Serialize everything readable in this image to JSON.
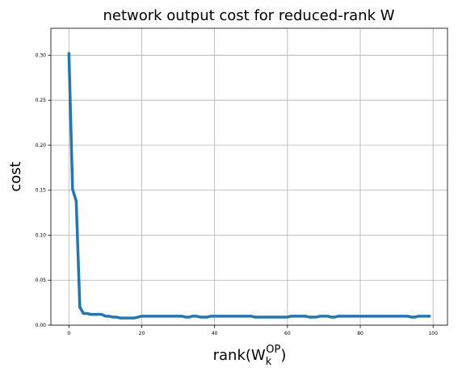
{
  "chart_data": {
    "type": "line",
    "title": "network output cost for reduced-rank W",
    "xlabel": {
      "base": "rank(W",
      "sub": "k",
      "sup": "OP",
      "close": ")"
    },
    "ylabel": "cost",
    "xlim": [
      -4.95,
      103.95
    ],
    "ylim": [
      0,
      0.33
    ],
    "xticks": [
      0,
      20,
      40,
      60,
      80,
      100
    ],
    "xtick_labels": [
      "0",
      "20",
      "40",
      "60",
      "80",
      "100"
    ],
    "yticks": [
      0.0,
      0.05,
      0.1,
      0.15,
      0.2,
      0.25,
      0.3
    ],
    "ytick_labels": [
      "0.00",
      "0.05",
      "0.10",
      "0.15",
      "0.20",
      "0.25",
      "0.30"
    ],
    "grid": true,
    "line_color": "#1f77b4",
    "series": [
      {
        "x": [
          0,
          1,
          2,
          3,
          4,
          5,
          6,
          7,
          8,
          9,
          10,
          11,
          12,
          13,
          14,
          15,
          16,
          17,
          18,
          19,
          20,
          21,
          22,
          23,
          24,
          25,
          26,
          27,
          28,
          29,
          30,
          31,
          32,
          33,
          34,
          35,
          36,
          37,
          38,
          39,
          40,
          41,
          42,
          43,
          44,
          45,
          46,
          47,
          48,
          49,
          50,
          51,
          52,
          53,
          54,
          55,
          56,
          57,
          58,
          59,
          60,
          61,
          62,
          63,
          64,
          65,
          66,
          67,
          68,
          69,
          70,
          71,
          72,
          73,
          74,
          75,
          76,
          77,
          78,
          79,
          80,
          81,
          82,
          83,
          84,
          85,
          86,
          87,
          88,
          89,
          90,
          91,
          92,
          93,
          94,
          95,
          96,
          97,
          98,
          99
        ],
        "y": [
          0.302,
          0.151,
          0.138,
          0.02,
          0.013,
          0.013,
          0.012,
          0.012,
          0.012,
          0.012,
          0.01,
          0.01,
          0.009,
          0.009,
          0.008,
          0.008,
          0.008,
          0.008,
          0.008,
          0.009,
          0.01,
          0.01,
          0.01,
          0.01,
          0.01,
          0.01,
          0.01,
          0.01,
          0.01,
          0.01,
          0.01,
          0.01,
          0.009,
          0.009,
          0.01,
          0.01,
          0.009,
          0.009,
          0.009,
          0.01,
          0.01,
          0.01,
          0.01,
          0.01,
          0.01,
          0.01,
          0.01,
          0.01,
          0.01,
          0.01,
          0.01,
          0.009,
          0.009,
          0.009,
          0.009,
          0.009,
          0.009,
          0.009,
          0.009,
          0.009,
          0.009,
          0.01,
          0.01,
          0.01,
          0.01,
          0.01,
          0.009,
          0.009,
          0.009,
          0.01,
          0.01,
          0.01,
          0.009,
          0.009,
          0.01,
          0.01,
          0.01,
          0.01,
          0.01,
          0.01,
          0.01,
          0.01,
          0.01,
          0.01,
          0.01,
          0.01,
          0.01,
          0.01,
          0.01,
          0.01,
          0.01,
          0.01,
          0.01,
          0.01,
          0.009,
          0.009,
          0.01,
          0.01,
          0.01,
          0.01
        ]
      }
    ]
  }
}
